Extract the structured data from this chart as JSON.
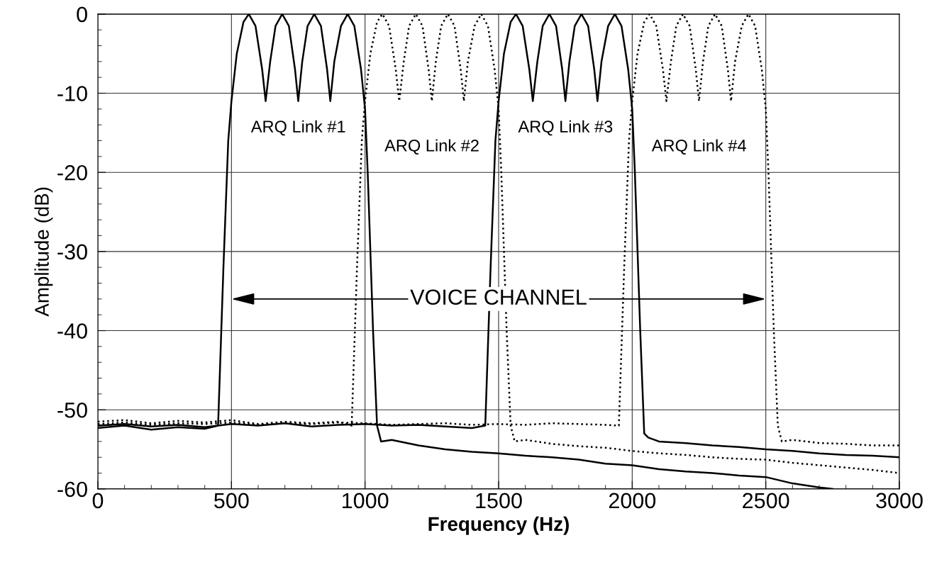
{
  "chart_data": {
    "type": "line",
    "xlabel": "Frequency (Hz)",
    "ylabel": "Amplitude (dB)",
    "xlim": [
      0,
      3000
    ],
    "xticks": [
      0,
      500,
      1000,
      1500,
      2000,
      2500,
      3000
    ],
    "ylim": [
      -60,
      0
    ],
    "yticks": [
      -60,
      -50,
      -40,
      -30,
      -20,
      -10,
      0
    ],
    "grid": true,
    "legend": false,
    "annotations": [
      "VOICE CHANNEL"
    ],
    "series": [
      {
        "name": "ARQ Link #1",
        "color": "#000000",
        "line_style": "solid",
        "x": [
          0,
          100,
          200,
          300,
          400,
          450,
          470,
          488,
          500,
          520,
          545,
          565,
          590,
          615,
          628,
          645,
          665,
          690,
          715,
          738,
          750,
          765,
          785,
          810,
          835,
          858,
          870,
          885,
          910,
          935,
          960,
          985,
          1000,
          1010,
          1030,
          1045,
          1060,
          1100,
          1200,
          1300,
          1400,
          1500,
          1600,
          1700,
          1800,
          1900,
          2000,
          2100,
          2200,
          2300,
          2400,
          2500,
          2600,
          2700,
          2750
        ],
        "values": [
          -52.3,
          -52,
          -52.5,
          -52.2,
          -52.4,
          -52,
          -32,
          -16,
          -11,
          -5,
          -1,
          0,
          -1.5,
          -7,
          -11,
          -6,
          -1.5,
          0,
          -1.5,
          -7,
          -11,
          -6,
          -1.5,
          0,
          -1.5,
          -7,
          -11,
          -6,
          -1.5,
          0,
          -1.5,
          -7,
          -12,
          -20,
          -40,
          -52,
          -54,
          -53.8,
          -54.5,
          -55,
          -55.3,
          -55.5,
          -55.8,
          -56,
          -56.3,
          -56.8,
          -57,
          -57.5,
          -57.8,
          -58,
          -58.3,
          -58.5,
          -59.3,
          -59.8,
          -60
        ]
      },
      {
        "name": "ARQ Link #2",
        "color": "#000000",
        "line_style": "dotted",
        "x": [
          0,
          100,
          200,
          300,
          400,
          500,
          600,
          700,
          800,
          900,
          950,
          970,
          988,
          1000,
          1020,
          1045,
          1065,
          1090,
          1115,
          1128,
          1145,
          1165,
          1190,
          1215,
          1238,
          1250,
          1265,
          1285,
          1310,
          1335,
          1358,
          1370,
          1385,
          1410,
          1435,
          1460,
          1485,
          1500,
          1510,
          1530,
          1545,
          1560,
          1600,
          1700,
          1800,
          1900,
          2000,
          2100,
          2200,
          2300,
          2400,
          2500,
          2600,
          2700,
          2800,
          2900,
          3000
        ],
        "values": [
          -51.5,
          -51.3,
          -51.7,
          -51.4,
          -51.6,
          -51.3,
          -51.8,
          -51.5,
          -51.7,
          -51.5,
          -52,
          -32,
          -16,
          -11,
          -5,
          -1,
          0,
          -1.5,
          -7,
          -11,
          -6,
          -1.5,
          0,
          -1.5,
          -7,
          -11,
          -6,
          -1.5,
          0,
          -1.5,
          -7,
          -11,
          -6,
          -1.5,
          0,
          -1.5,
          -7,
          -12,
          -20,
          -40,
          -52,
          -54,
          -53.8,
          -54.3,
          -54.6,
          -54.8,
          -55.2,
          -55.5,
          -55.7,
          -56,
          -56.2,
          -56.3,
          -56.7,
          -57,
          -57.3,
          -57.6,
          -58
        ]
      },
      {
        "name": "ARQ Link #3",
        "color": "#000000",
        "line_style": "solid",
        "x": [
          0,
          100,
          200,
          300,
          400,
          500,
          600,
          700,
          800,
          900,
          1000,
          1100,
          1200,
          1300,
          1400,
          1450,
          1470,
          1488,
          1500,
          1520,
          1545,
          1565,
          1590,
          1615,
          1628,
          1645,
          1665,
          1690,
          1715,
          1738,
          1750,
          1765,
          1785,
          1810,
          1835,
          1858,
          1870,
          1885,
          1910,
          1935,
          1960,
          1985,
          2000,
          2010,
          2030,
          2045,
          2060,
          2100,
          2200,
          2300,
          2400,
          2500,
          2600,
          2700,
          2800,
          2900,
          3000
        ],
        "values": [
          -52,
          -51.8,
          -52.1,
          -51.9,
          -52.2,
          -51.8,
          -52,
          -51.7,
          -52.1,
          -51.9,
          -51.8,
          -52,
          -51.9,
          -52.1,
          -52.3,
          -52,
          -32,
          -16,
          -11,
          -5,
          -1,
          0,
          -1.5,
          -7,
          -11,
          -6,
          -1.5,
          0,
          -1.5,
          -7,
          -11,
          -6,
          -1.5,
          0,
          -1.5,
          -7,
          -11,
          -6,
          -1.5,
          0,
          -1.5,
          -7,
          -12,
          -20,
          -40,
          -53,
          -53.5,
          -54,
          -54.2,
          -54.5,
          -54.7,
          -55,
          -55.2,
          -55.5,
          -55.7,
          -55.8,
          -56
        ]
      },
      {
        "name": "ARQ Link #4",
        "color": "#000000",
        "line_style": "dotted",
        "x": [
          0,
          100,
          200,
          300,
          400,
          500,
          600,
          700,
          800,
          900,
          1000,
          1100,
          1200,
          1300,
          1400,
          1500,
          1600,
          1700,
          1800,
          1900,
          1950,
          1970,
          1988,
          2000,
          2020,
          2045,
          2065,
          2090,
          2115,
          2128,
          2145,
          2165,
          2190,
          2215,
          2238,
          2250,
          2265,
          2285,
          2310,
          2335,
          2358,
          2370,
          2385,
          2410,
          2435,
          2460,
          2485,
          2500,
          2510,
          2530,
          2545,
          2560,
          2600,
          2700,
          2800,
          2900,
          3000
        ],
        "values": [
          -51.8,
          -51.6,
          -51.9,
          -51.7,
          -51.8,
          -51.6,
          -51.9,
          -51.7,
          -51.8,
          -51.6,
          -51.7,
          -51.9,
          -51.8,
          -51.7,
          -51.9,
          -51.8,
          -51.9,
          -51.7,
          -51.8,
          -51.9,
          -52,
          -32,
          -16,
          -11,
          -5,
          -1,
          0,
          -1.5,
          -7,
          -11,
          -6,
          -1.5,
          0,
          -1.5,
          -7,
          -11,
          -6,
          -1.5,
          0,
          -1.5,
          -7,
          -11,
          -6,
          -1.5,
          0,
          -1.5,
          -7,
          -12,
          -20,
          -40,
          -52,
          -54,
          -53.8,
          -54.2,
          -54.3,
          -54.5,
          -54.5
        ]
      }
    ]
  }
}
